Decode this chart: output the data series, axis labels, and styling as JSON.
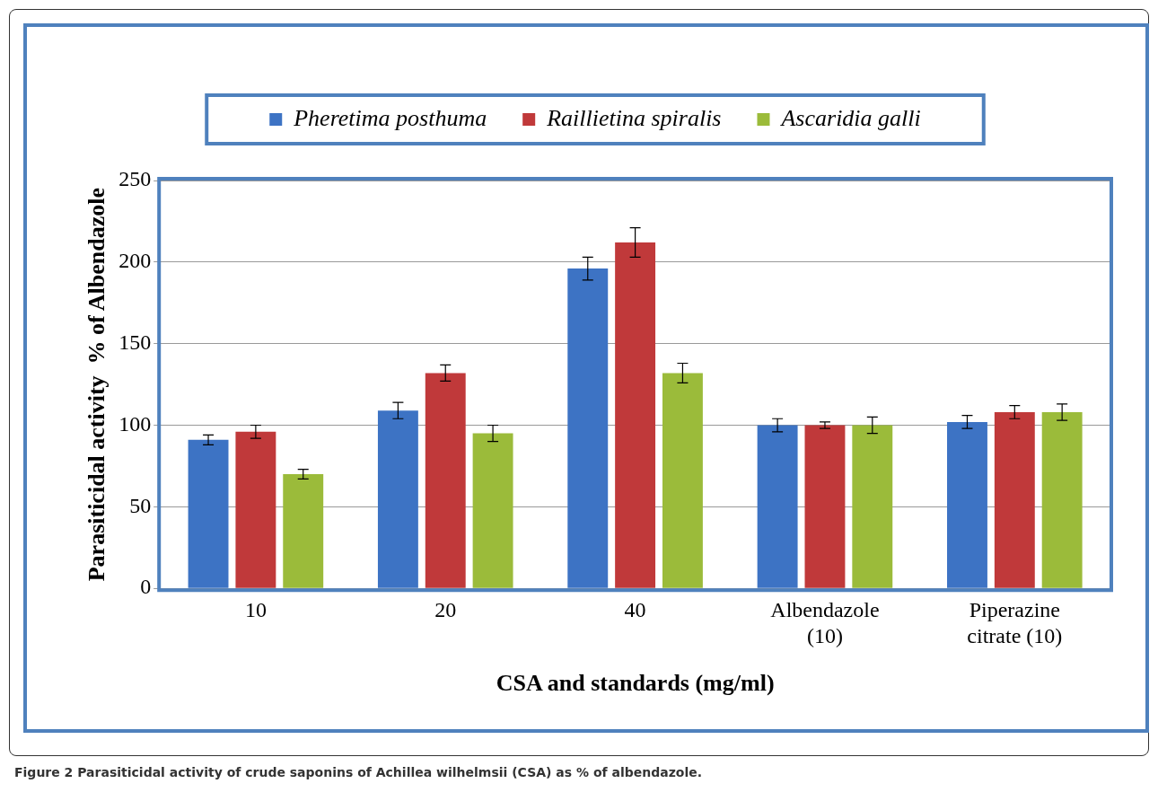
{
  "chart_data": {
    "type": "bar",
    "xlabel": "CSA and standards (mg/ml)",
    "ylabel": "Parasiticidal activity  % of Albendazole",
    "categories": [
      "10",
      "20",
      "40",
      "Albendazole (10)",
      "Piperazine citrate (10)"
    ],
    "series": [
      {
        "name": "Pheretima posthuma",
        "color": "#3d73c4",
        "values": [
          91,
          109,
          196,
          100,
          102
        ],
        "errors": [
          3,
          5,
          7,
          4,
          4
        ]
      },
      {
        "name": "Raillietina spiralis",
        "color": "#c0393a",
        "values": [
          96,
          132,
          212,
          100,
          108
        ],
        "errors": [
          4,
          5,
          9,
          2,
          4
        ]
      },
      {
        "name": "Ascaridia galli",
        "color": "#9bbb3a",
        "values": [
          70,
          95,
          132,
          100,
          108
        ],
        "errors": [
          3,
          5,
          6,
          5,
          5
        ]
      }
    ],
    "ylim": [
      0,
      250
    ],
    "yticks": [
      0,
      50,
      100,
      150,
      200,
      250
    ],
    "grid": "y",
    "legend": "top",
    "annotations": [
      "Figure 2 Parasiticidal activity of crude saponins of Achillea wilhelmsii (CSA) as % of albendazole."
    ]
  }
}
